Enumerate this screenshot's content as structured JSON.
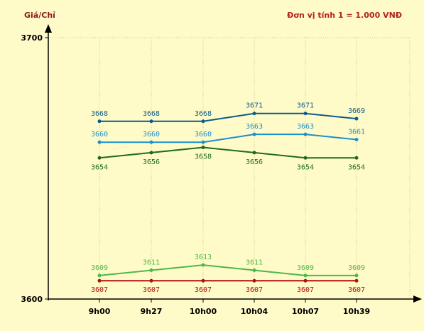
{
  "chart_data": {
    "type": "line",
    "ylabel": "Giá/Chỉ",
    "unit_note": "Đơn vị tính 1 = 1.000 VNĐ",
    "categories": [
      "9h00",
      "9h27",
      "10h00",
      "10h04",
      "10h07",
      "10h39"
    ],
    "ylim": [
      3600,
      3700
    ],
    "yticks": [
      3600,
      3700
    ],
    "grid": true,
    "series": [
      {
        "color": "#0d5a8c",
        "label_position": "above",
        "values": [
          3668,
          3668,
          3668,
          3671,
          3671,
          3669
        ]
      },
      {
        "color": "#1a8fd1",
        "label_position": "above",
        "values": [
          3660,
          3660,
          3660,
          3663,
          3663,
          3661
        ]
      },
      {
        "color": "#1e6b1e",
        "label_position": "below",
        "values": [
          3654,
          3656,
          3658,
          3656,
          3654,
          3654
        ]
      },
      {
        "color": "#4cb848",
        "label_position": "above",
        "values": [
          3609,
          3611,
          3613,
          3611,
          3609,
          3609
        ]
      },
      {
        "color": "#b01010",
        "label_position": "below",
        "values": [
          3607,
          3607,
          3607,
          3607,
          3607,
          3607
        ]
      }
    ]
  }
}
